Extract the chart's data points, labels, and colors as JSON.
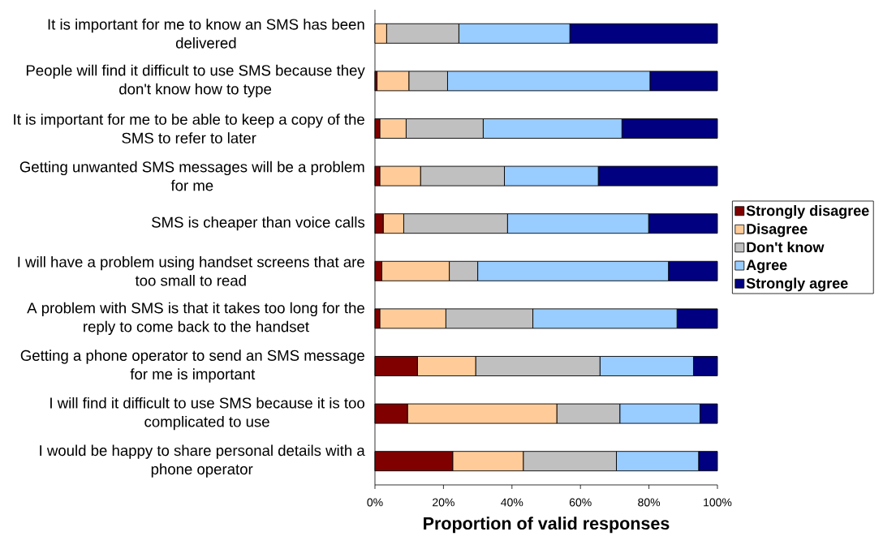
{
  "chart_data": {
    "type": "bar",
    "orientation": "horizontal",
    "stacked": true,
    "xlabel": "Proportion of valid responses",
    "categories": [
      "It is important for me to know an SMS has been delivered",
      "People will find it difficult to use SMS because they don't know how to type",
      "It is important for me to be able to keep a copy of the SMS to refer to later",
      "Getting unwanted SMS messages will be a problem for me",
      "SMS is cheaper than voice calls",
      "I will have a problem using handset screens that are too small to read",
      "A problem with SMS is that it takes too long for the reply to come back to the handset",
      "Getting a phone operator to send an SMS message for me is important",
      "I will find it difficult to use SMS because it is too complicated to use",
      "I would be happy to share personal details with a phone operator"
    ],
    "series": [
      {
        "name": "Strongly disagree",
        "color": "#800000",
        "values": [
          0,
          0.6,
          1.4,
          1.4,
          2.4,
          2.0,
          1.4,
          12.4,
          9.5,
          22.7
        ]
      },
      {
        "name": "Disagree",
        "color": "#ffcc99",
        "values": [
          3.4,
          9.3,
          7.7,
          11.9,
          6.0,
          19.7,
          19.3,
          17.0,
          43.6,
          20.6
        ]
      },
      {
        "name": "Don't know",
        "color": "#c0c0c0",
        "values": [
          21.1,
          11.3,
          22.5,
          24.5,
          30.3,
          8.3,
          25.4,
          36.3,
          18.4,
          27.2
        ]
      },
      {
        "name": "Agree",
        "color": "#99ccff",
        "values": [
          32.4,
          59.1,
          40.5,
          27.4,
          41.2,
          55.7,
          42.1,
          27.3,
          23.4,
          24.0
        ]
      },
      {
        "name": "Strongly agree",
        "color": "#000080",
        "values": [
          43.1,
          19.7,
          27.9,
          34.8,
          20.1,
          14.3,
          11.8,
          7.0,
          5.1,
          5.5
        ]
      }
    ],
    "xlim": [
      0,
      100
    ],
    "xticks": [
      {
        "value": 0,
        "label": "0%"
      },
      {
        "value": 20,
        "label": "20%"
      },
      {
        "value": 40,
        "label": "40%"
      },
      {
        "value": 60,
        "label": "60%"
      },
      {
        "value": 80,
        "label": "80%"
      },
      {
        "value": 100,
        "label": "100%"
      }
    ],
    "legend": "right"
  }
}
